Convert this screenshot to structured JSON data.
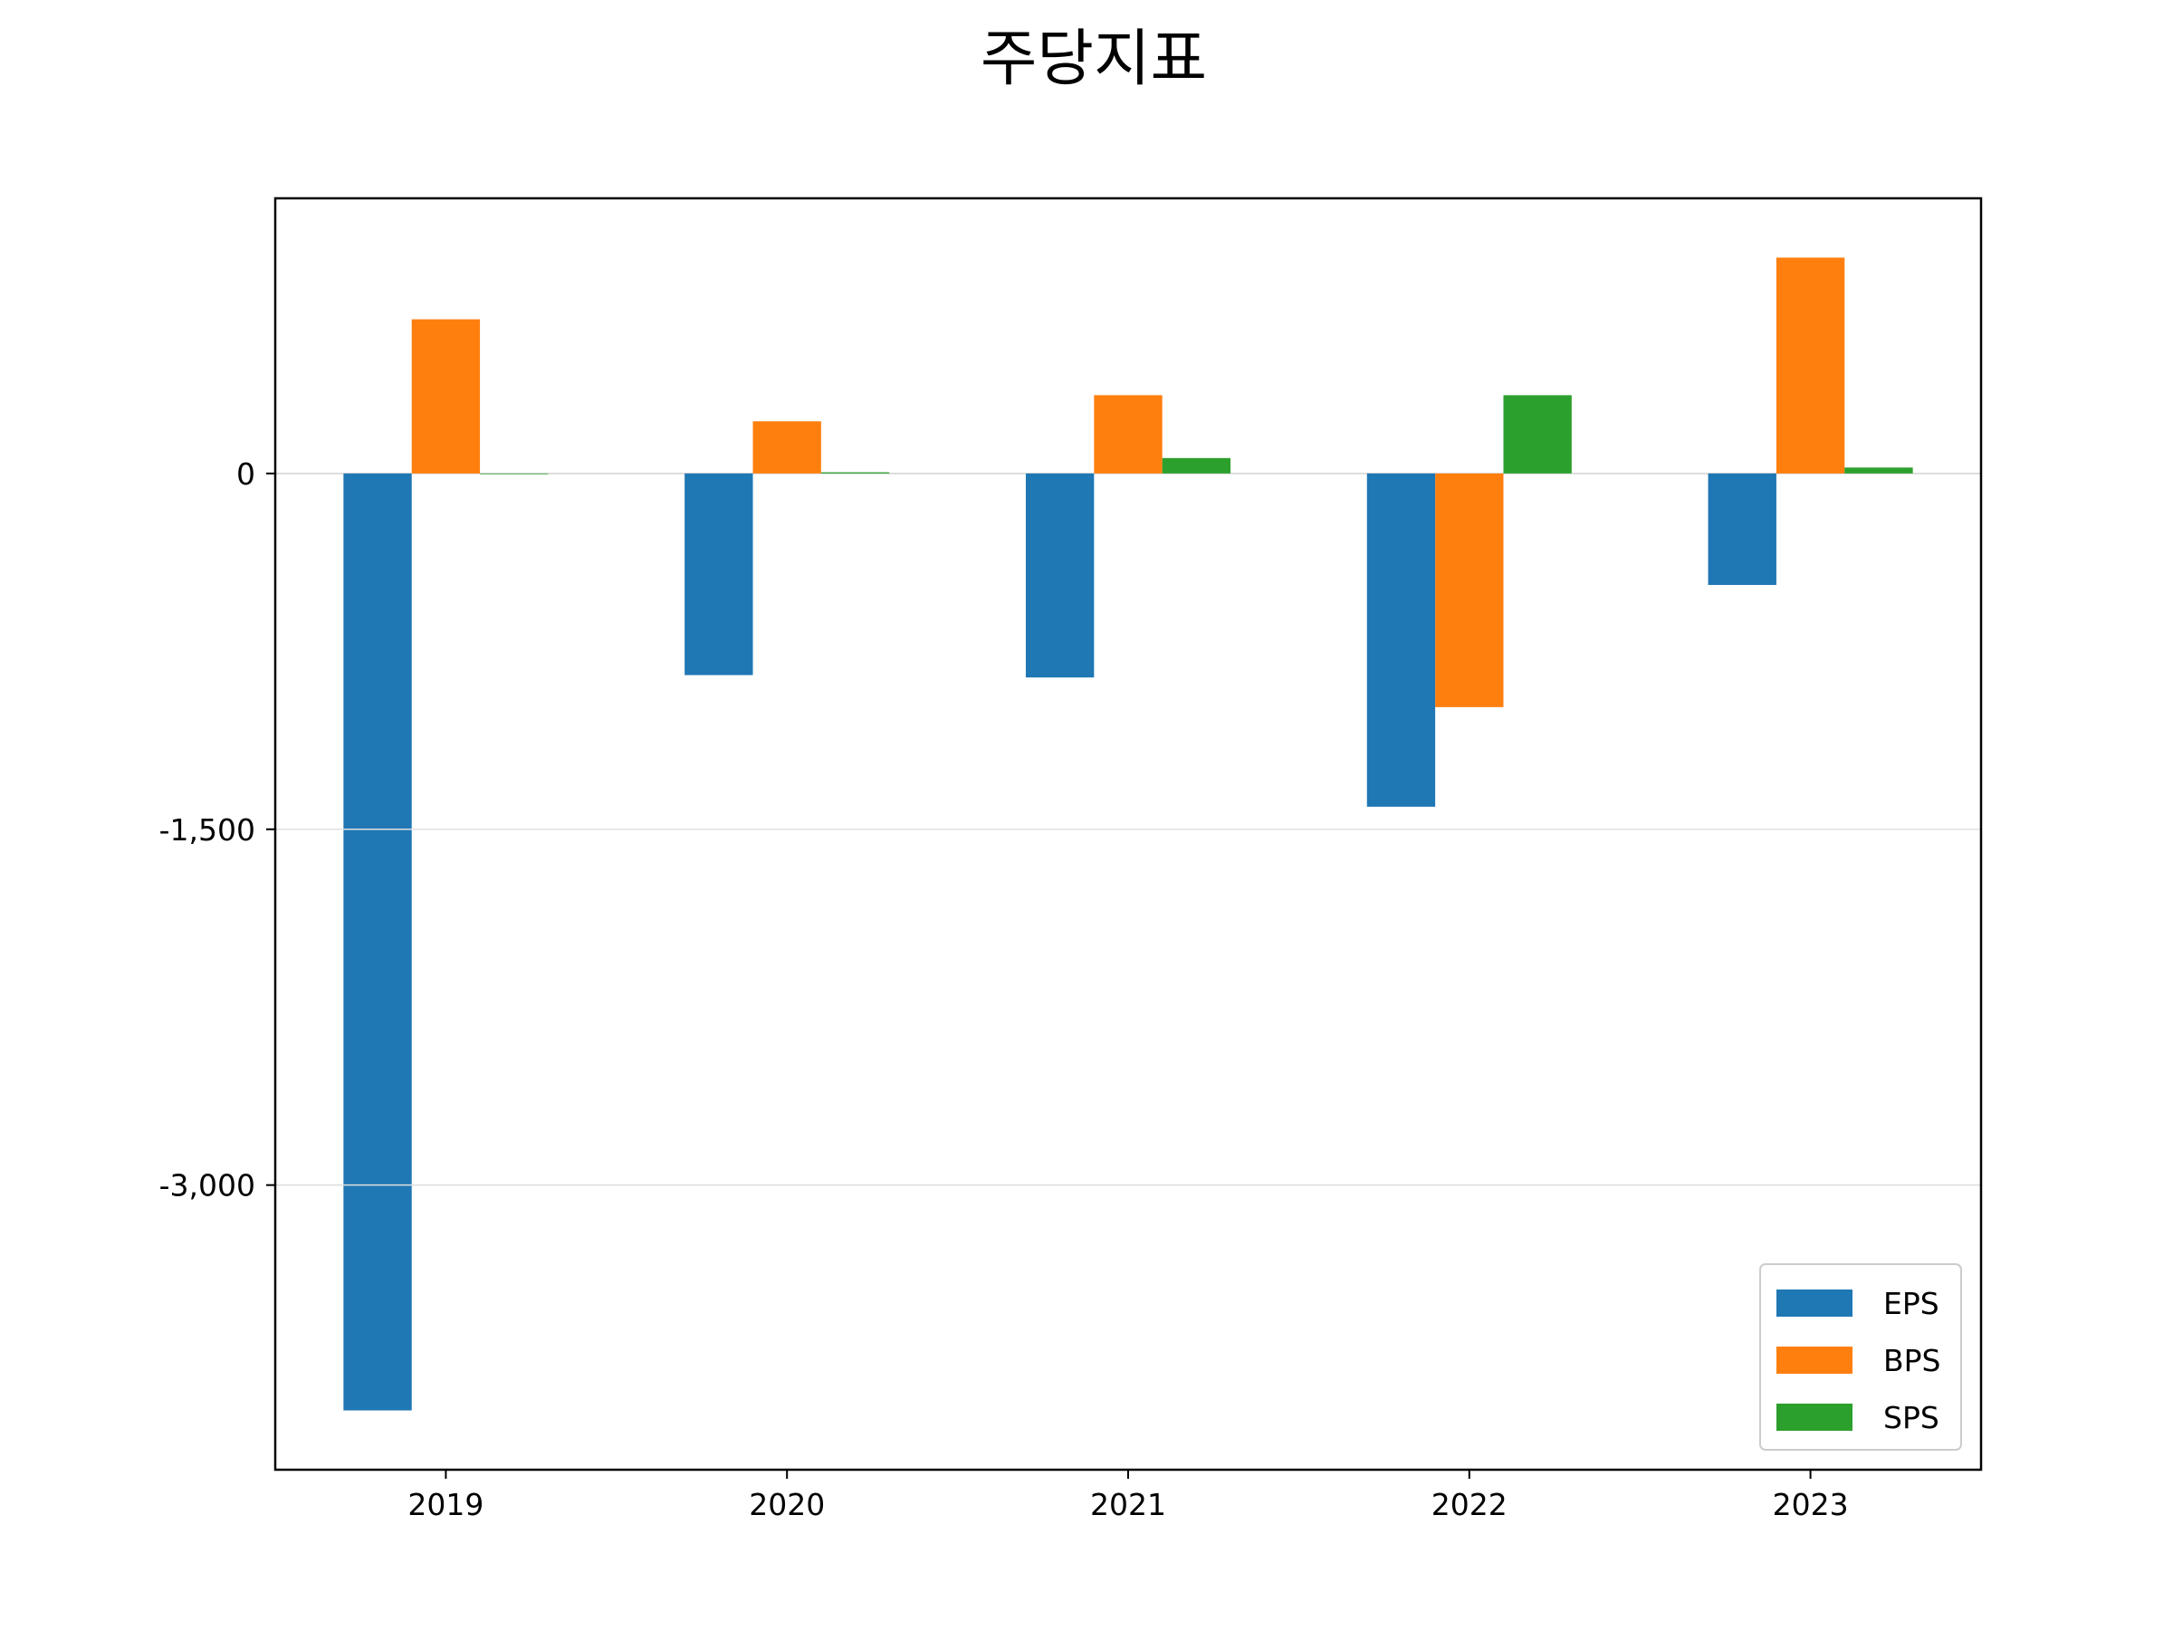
{
  "chart_data": {
    "type": "bar",
    "title": "주당지표",
    "categories": [
      "2019",
      "2020",
      "2021",
      "2022",
      "2023"
    ],
    "series": [
      {
        "name": "EPS",
        "color": "#1f77b4",
        "values": [
          -3950,
          -850,
          -860,
          -1405,
          -470
        ]
      },
      {
        "name": "BPS",
        "color": "#ff7f0e",
        "values": [
          650,
          220,
          330,
          -985,
          910
        ]
      },
      {
        "name": "SPS",
        "color": "#2ca02c",
        "values": [
          0,
          5,
          65,
          330,
          25
        ]
      }
    ],
    "ylim": [
      -4200,
      1160
    ],
    "yticks": [
      0,
      -1500,
      -3000
    ],
    "ytick_labels": [
      "0",
      "-1,500",
      "-3,000"
    ],
    "grid": "y",
    "legend_position": "lower right",
    "xlabel": "",
    "ylabel": ""
  }
}
